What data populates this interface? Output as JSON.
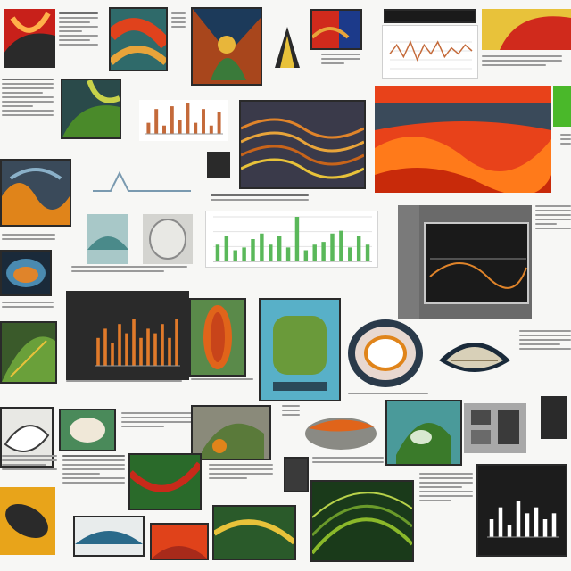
{
  "page": {
    "background": "#f7f7f5",
    "accent_colors": [
      "#e0421c",
      "#ff6a1a",
      "#3a8a2c",
      "#1f2a3a",
      "#58b0c8"
    ]
  },
  "chart_data": [
    {
      "type": "line",
      "series": [
        {
          "values": [
            5,
            8,
            4,
            9,
            3,
            8,
            5,
            9,
            4,
            7,
            5,
            8,
            6
          ]
        }
      ],
      "grid": true
    },
    {
      "type": "bar",
      "series": [
        {
          "values": [
            4,
            9,
            3,
            10,
            5,
            11,
            4,
            9,
            3,
            8
          ]
        }
      ],
      "color": "#c46a3a"
    },
    {
      "type": "bar",
      "series": [
        {
          "values": [
            6,
            9,
            4,
            5,
            8,
            10,
            6,
            9,
            5,
            16,
            4,
            6,
            7,
            10,
            11,
            5,
            9,
            6
          ]
        }
      ],
      "color": "#5ab85a",
      "grid": true
    },
    {
      "type": "bar",
      "series": [
        {
          "values": [
            6,
            8,
            5,
            9,
            7,
            10,
            6,
            8,
            7,
            9,
            6,
            10
          ]
        }
      ],
      "color": "#e07a2a"
    },
    {
      "type": "bar",
      "series": [
        {
          "values": [
            3,
            5,
            2,
            6,
            4,
            5,
            3,
            4
          ]
        }
      ],
      "color": "#ffffff"
    }
  ]
}
